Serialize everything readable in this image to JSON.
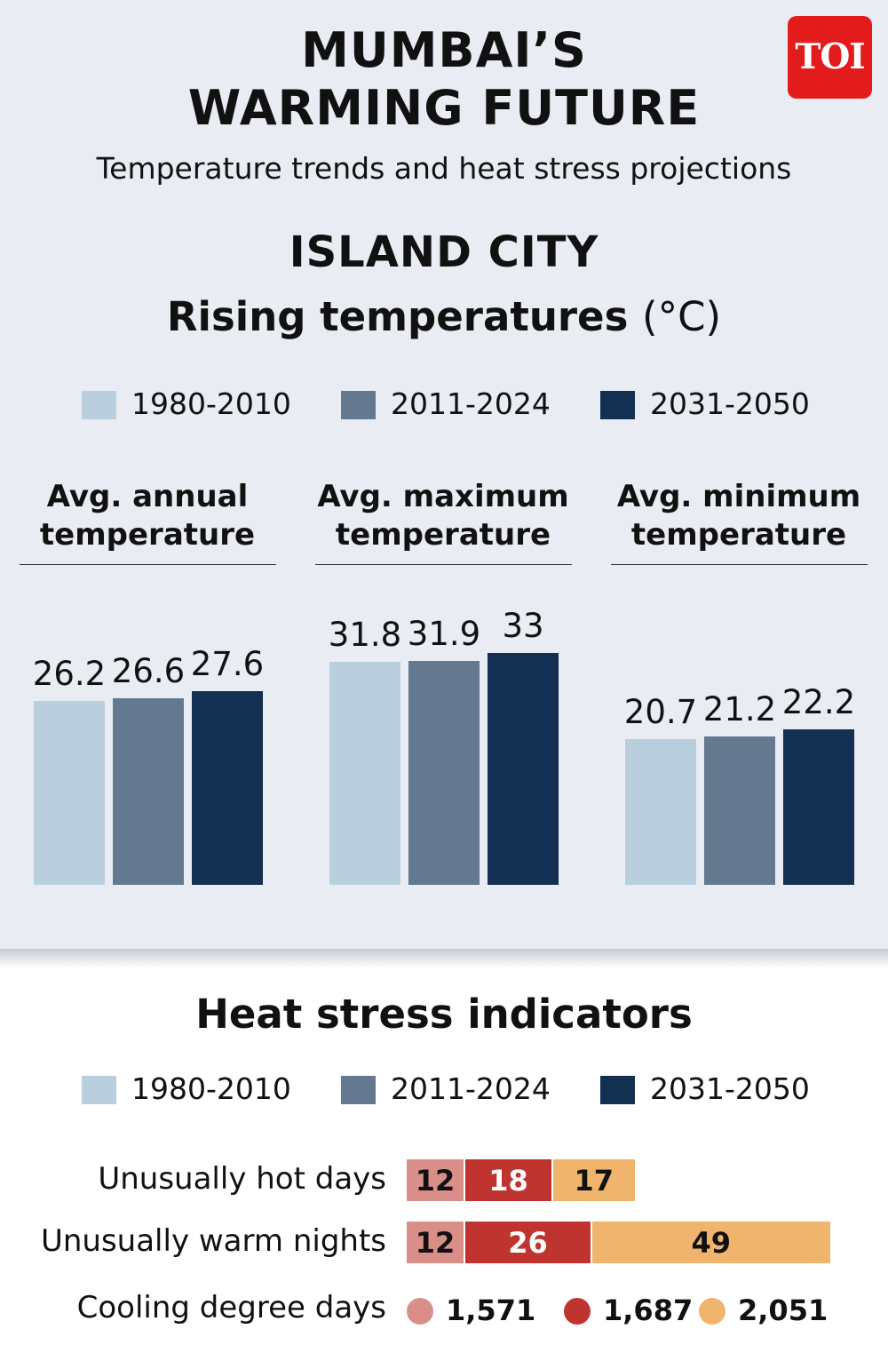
{
  "header": {
    "title_line1": "MUMBAI’S",
    "title_line2": "WARMING FUTURE",
    "subtitle": "Temperature trends and heat stress projections",
    "logo": "TOI"
  },
  "colors": {
    "period1": "#b9cfdd",
    "period2": "#64788f",
    "period3": "#132f52",
    "heat1": "#d98f87",
    "heat2": "#c0342f",
    "heat3": "#f0b46c",
    "panel_bg": "#e9ecf2"
  },
  "legend": [
    "1980-2010",
    "2011-2024",
    "2031-2050"
  ],
  "temperatures": {
    "area": "ISLAND CITY",
    "heading": "Rising temperatures",
    "unit": "(°C)"
  },
  "heat_stress": {
    "heading": "Heat stress indicators"
  },
  "chart_data": [
    {
      "type": "bar",
      "title": "Rising temperatures (°C)",
      "series_names": [
        "1980-2010",
        "2011-2024",
        "2031-2050"
      ],
      "groups": [
        {
          "label_line1": "Avg. annual",
          "label_line2": "temperature",
          "values": [
            26.2,
            26.6,
            27.6
          ]
        },
        {
          "label_line1": "Avg. maximum",
          "label_line2": "temperature",
          "values": [
            31.8,
            31.9,
            33
          ]
        },
        {
          "label_line1": "Avg. minimum",
          "label_line2": "temperature",
          "values": [
            20.7,
            21.2,
            22.2
          ]
        }
      ]
    },
    {
      "type": "bar",
      "title": "Heat stress indicators",
      "stacked": true,
      "series_names": [
        "1980-2010",
        "2011-2024",
        "2031-2050"
      ],
      "rows": [
        {
          "label": "Unusually hot days",
          "values": [
            12,
            18,
            17
          ]
        },
        {
          "label": "Unusually warm nights",
          "values": [
            12,
            26,
            49
          ]
        }
      ],
      "cooling": {
        "label": "Cooling degree days",
        "values": [
          "1,571",
          "1,687",
          "2,051"
        ]
      }
    }
  ]
}
